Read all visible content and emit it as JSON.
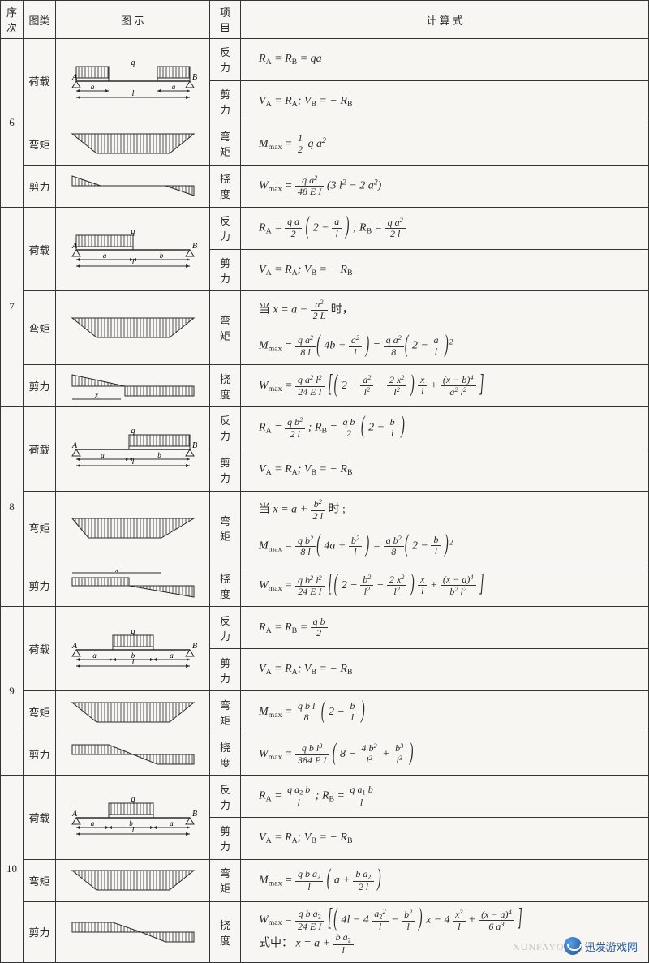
{
  "header": {
    "seq": "序次",
    "type": "图类",
    "diag": "图    示",
    "item": "项目",
    "formula": "计    算    式"
  },
  "rows": [
    {
      "seq": "6",
      "cells": [
        {
          "type": "荷载",
          "diag": "beam6_load",
          "item": "反力",
          "formula": "R<sub>A</sub> = R<sub>B</sub> = qa",
          "rowspan_type": 2
        },
        {
          "item": "剪力",
          "formula": "V<sub>A</sub> = R<sub>A</sub>;  V<sub>B</sub> = − R<sub>B</sub>"
        },
        {
          "type": "弯矩",
          "diag": "trapezoid_down",
          "item": "弯矩",
          "formula": "M<sub>max</sub> = <span class='frac'><span class='n'>1</span><span class='d'>2</span></span> q a<sup>2</sup>"
        },
        {
          "type": "剪力",
          "diag": "shear6",
          "item": "挠度",
          "formula": "W<sub>max</sub> = <span class='frac'><span class='n'>q a<sup>2</sup></span><span class='d'>48 E I</span></span> (3 l<sup>2</sup> − 2 a<sup>2</sup>)"
        }
      ]
    },
    {
      "seq": "7",
      "cells": [
        {
          "type": "荷载",
          "diag": "beam7_load",
          "item": "反力",
          "formula": "R<sub>A</sub> = <span class='frac'><span class='n'>q a</span><span class='d'>2</span></span> <span class='lp'>(</span> 2 − <span class='frac'><span class='n'>a</span><span class='d'>l</span></span> <span class='lp'>)</span> ;   R<sub>B</sub> = <span class='frac'><span class='n'>q a<sup>2</sup></span><span class='d'>2 l</span></span>",
          "rowspan_type": 2
        },
        {
          "item": "剪力",
          "formula": "V<sub>A</sub> = R<sub>A</sub>;  V<sub>B</sub> = − R<sub>B</sub>"
        },
        {
          "type": "弯矩",
          "diag": "trapezoid_down",
          "item": "弯矩",
          "formula": "<span style='font-style:normal'>当</span> x = a − <span class='frac'><span class='n'>a<sup>2</sup></span><span class='d'>2 L</span></span> <span style='font-style:normal'>时，</span><br><br>M<sub>max</sub> = <span class='frac'><span class='n'>q a<sup>2</sup></span><span class='d'>8 l</span></span><span class='lp'>(</span> 4b + <span class='frac'><span class='n'>a<sup>2</sup></span><span class='d'>l</span></span> <span class='lp'>)</span> = <span class='frac'><span class='n'>q a<sup>2</sup></span><span class='d'>8</span></span><span class='lp'>(</span> 2 − <span class='frac'><span class='n'>a</span><span class='d'>l</span></span> <span class='lp'>)</span><sup>2</sup>"
        },
        {
          "type": "剪力",
          "diag": "shear7",
          "item": "挠度",
          "formula": "W<sub>max</sub> = <span class='frac'><span class='n'>q a<sup>2</sup> l<sup>2</sup></span><span class='d'>24 E I</span></span> <span class='lb'>[</span><span class='lp'>(</span> 2 − <span class='frac'><span class='n'>a<sup>2</sup></span><span class='d'>l<sup>2</sup></span></span> − <span class='frac'><span class='n'>2 x<sup>2</sup></span><span class='d'>l<sup>2</sup></span></span> <span class='lp'>)</span> <span class='frac'><span class='n'>x</span><span class='d'>l</span></span> + <span class='frac'><span class='n'>(x − b)<sup>4</sup></span><span class='d'>a<sup>2</sup> l<sup>2</sup></span></span> <span class='lb'>]</span>"
        }
      ]
    },
    {
      "seq": "8",
      "cells": [
        {
          "type": "荷载",
          "diag": "beam8_load",
          "item": "反力",
          "formula": "R<sub>A</sub> = <span class='frac'><span class='n'>q b<sup>2</sup></span><span class='d'>2 l</span></span> ;   R<sub>B</sub> = <span class='frac'><span class='n'>q b</span><span class='d'>2</span></span> <span class='lp'>(</span> 2 − <span class='frac'><span class='n'>b</span><span class='d'>l</span></span> <span class='lp'>)</span>",
          "rowspan_type": 2
        },
        {
          "item": "剪力",
          "formula": "V<sub>A</sub> = R<sub>A</sub>;  V<sub>B</sub> = − R<sub>B</sub>"
        },
        {
          "type": "弯矩",
          "diag": "trapezoid_down2",
          "item": "弯矩",
          "formula": "<span style='font-style:normal'>当</span> x = a + <span class='frac'><span class='n'>b<sup>2</sup></span><span class='d'>2 l</span></span> <span style='font-style:normal'>时 ;</span><br><br>M<sub>max</sub> = <span class='frac'><span class='n'>q b<sup>2</sup></span><span class='d'>8 l</span></span><span class='lp'>(</span> 4a + <span class='frac'><span class='n'>b<sup>2</sup></span><span class='d'>l</span></span> <span class='lp'>)</span> = <span class='frac'><span class='n'>q b<sup>2</sup></span><span class='d'>8</span></span><span class='lp'>(</span> 2 − <span class='frac'><span class='n'>b</span><span class='d'>l</span></span> <span class='lp'>)</span><sup>2</sup>"
        },
        {
          "type": "剪力",
          "diag": "shear8",
          "item": "挠度",
          "formula": "W<sub>max</sub> = <span class='frac'><span class='n'>q b<sup>2</sup> l<sup>2</sup></span><span class='d'>24 E I</span></span> <span class='lb'>[</span><span class='lp'>(</span> 2 − <span class='frac'><span class='n'>b<sup>2</sup></span><span class='d'>l<sup>2</sup></span></span> − <span class='frac'><span class='n'>2 x<sup>2</sup></span><span class='d'>l<sup>2</sup></span></span> <span class='lp'>)</span> <span class='frac'><span class='n'>x</span><span class='d'>l</span></span> + <span class='frac'><span class='n'>(x − a)<sup>4</sup></span><span class='d'>b<sup>2</sup> l<sup>2</sup></span></span> <span class='lb'>]</span>"
        }
      ]
    },
    {
      "seq": "9",
      "cells": [
        {
          "type": "荷载",
          "diag": "beam9_load",
          "item": "反力",
          "formula": "R<sub>A</sub> = R<sub>B</sub> = <span class='frac'><span class='n'>q b</span><span class='d'>2</span></span>",
          "rowspan_type": 2
        },
        {
          "item": "剪力",
          "formula": "V<sub>A</sub> = R<sub>A</sub>;  V<sub>B</sub> = − R<sub>B</sub>"
        },
        {
          "type": "弯矩",
          "diag": "trapezoid_down",
          "item": "弯矩",
          "formula": "M<sub>max</sub> = <span class='frac'><span class='n'>q b l</span><span class='d'>8</span></span> <span class='lp'>(</span> 2 − <span class='frac'><span class='n'>b</span><span class='d'>l</span></span> <span class='lp'>)</span>"
        },
        {
          "type": "剪力",
          "diag": "shear9",
          "item": "挠度",
          "formula": "W<sub>max</sub> = <span class='frac'><span class='n'>q b l<sup>3</sup></span><span class='d'>384 E I</span></span> <span class='lp'>(</span> 8 − <span class='frac'><span class='n'>4 b<sup>2</sup></span><span class='d'>l<sup>2</sup></span></span> + <span class='frac'><span class='n'>b<sup>3</sup></span><span class='d'>l<sup>3</sup></span></span> <span class='lp'>)</span>"
        }
      ]
    },
    {
      "seq": "10",
      "cells": [
        {
          "type": "荷载",
          "diag": "beam10_load",
          "item": "反力",
          "formula": "R<sub>A</sub> = <span class='frac'><span class='n'>q a<sub>2</sub> b</span><span class='d'>l</span></span> ;   R<sub>B</sub> = <span class='frac'><span class='n'>q a<sub>1</sub> b</span><span class='d'>l</span></span>",
          "rowspan_type": 2
        },
        {
          "item": "剪力",
          "formula": "V<sub>A</sub> = R<sub>A</sub>;  V<sub>B</sub> = − R<sub>B</sub>"
        },
        {
          "type": "弯矩",
          "diag": "trapezoid_down",
          "item": "弯矩",
          "formula": "M<sub>max</sub> = <span class='frac'><span class='n'>q b a<sub>2</sub></span><span class='d'>l</span></span> <span class='lp'>(</span> a + <span class='frac'><span class='n'>b a<sub>2</sub></span><span class='d'>2 l</span></span> <span class='lp'>)</span>"
        },
        {
          "type": "剪力",
          "diag": "shear10",
          "item": "挠度",
          "formula": "W<sub>max</sub> = <span class='frac'><span class='n'>q b a<sub>2</sub></span><span class='d'>24 E I</span></span> <span class='lb'>[</span><span class='lp'>(</span> 4l − 4 <span class='frac'><span class='n'>a<sub>2</sub><sup>2</sup></span><span class='d'>l</span></span> − <span class='frac'><span class='n'>b<sup>2</sup></span><span class='d'>l</span></span> <span class='lp'>)</span> x − 4 <span class='frac'><span class='n'>x<sup>3</sup></span><span class='d'>l</span></span> + <span class='frac'><span class='n'>(x − a)<sup>4</sup></span><span class='d'>6 a<sup>3</sup></span></span> <span class='lb'>]</span><br><span style='font-style:normal'>式中：</span> x = a + <span class='frac'><span class='n'>b a<sub>2</sub></span><span class='d'>l</span></span>"
        }
      ]
    }
  ],
  "watermark": {
    "text": "迅发游戏网",
    "ghost": "XUNFAYOUXIWANG"
  },
  "diagrams": {
    "stroke": "#2a2a2a",
    "fill": "none"
  }
}
